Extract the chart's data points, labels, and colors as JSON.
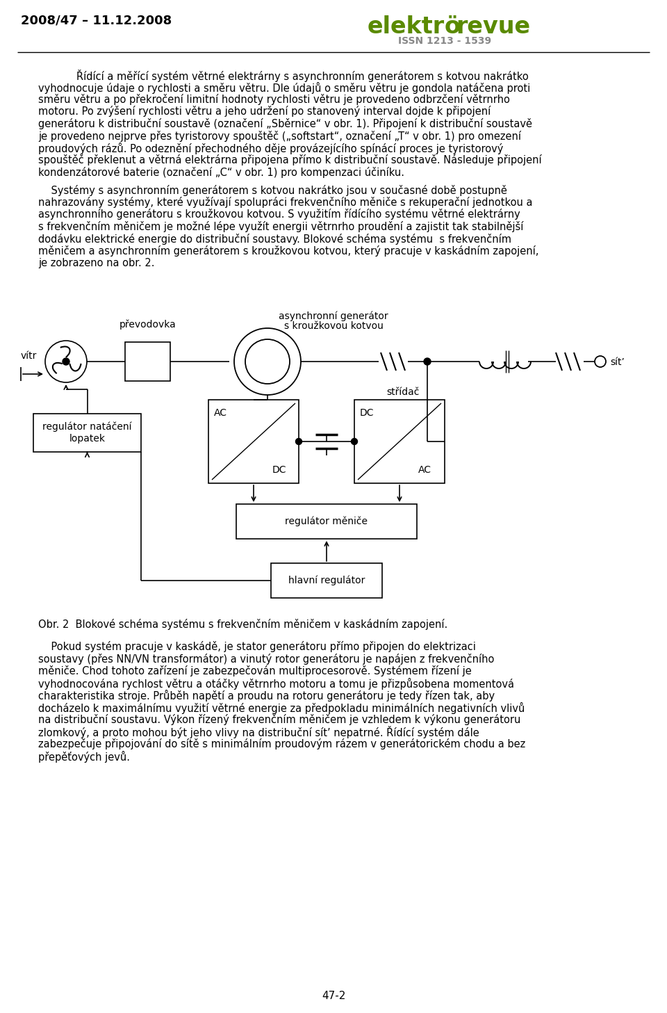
{
  "header_left": "2008/47 – 11.12.2008",
  "header_issn": "ISSN 1213 - 1539",
  "header_color": "#5a8a00",
  "header_gray": "#888888",
  "caption": "Obr. 2  Blokové schéma systému s frekvenčním měničem v kaskádním zapojení.",
  "page_number": "47-2",
  "background": "#ffffff",
  "text_color": "#000000",
  "para1_lines": [
    "Řídící a měřící systém větrné elektrárny s asynchronním generátorem s kotvou nakrátko",
    "vyhodnocuje údaje o rychlosti a směru větru. Dle údajů o směru větru je gondola natáčena proti",
    "směru větru a po překročení limitní hodnoty rychlosti větru je provedeno odbrzčení větrnrho",
    "motoru. Po zvýšení rychlosti větru a jeho udržení po stanovený interval dojde k připojení",
    "generátoru k distribuční soustavě (označení „Sběrnice“ v obr. 1). Připojení k distribuční soustavě",
    "je provedeno nejprve přes tyristorovy spouštěč („softstart“, označení „T“ v obr. 1) pro omezení",
    "proudových rázů. Po odeznění přechodného děje provázejícího spínácí proces je tyristorový",
    "spouštěč překlenut a větrná elektrárna připojena přímo k distribuční soustavě. Následuje připojení",
    "kondenzátorové baterie (označení „C“ v obr. 1) pro kompenzaci účiníku."
  ],
  "para2_lines": [
    "    Systémy s asynchronním generátorem s kotvou nakrátko jsou v současné době postupně",
    "nahrazovány systémy, které využívají spolupráci frekvenčního měniče s rekuperační jednotkou a",
    "asynchronního generátoru s kroužkovou kotvou. S využitím řídícího systému větrné elektrárny",
    "s frekvenčním měničem je možné lépe využít energii větrnrho proudění a zajistit tak stabilnější",
    "dodávku elektrické energie do distribuční soustavy. Blokové schéma systému  s frekvenčním",
    "měničem a asynchronním generátorem s kroužkovou kotvou, který pracuje v kaskádním zapojení,",
    "je zobrazeno na obr. 2."
  ],
  "para3_lines": [
    "    Pokud systém pracuje v kaskádě, je stator generátoru přímo připojen do elektrizaci",
    "soustavy (přes NN/VN transformátor) a vinutý rotor generátoru je napájen z frekvenčního",
    "měniče. Chod tohoto zařízení je zabezpečován multiprocesorově. Systémem řízení je",
    "vyhodnocována rychlost větru a otáčky větrnrho motoru a tomu je přizpůsobena momentová",
    "charakteristika stroje. Průběh napětí a proudu na rotoru generátoru je tedy řízen tak, aby",
    "docházelo k maximálnímu využití větrné energie za předpokladu minimálních negativních vlivů",
    "na distribuční soustavu. Výkon řízený frekvenčním měničem je vzhledem k výkonu generátoru",
    "zlomkový, a proto mohou být jeho vlivy na distribuční sítʼ nepatrné. Řídící systém dále",
    "zabezpečuje připojování do sítě s minimálním proudovým rázem v generátorickém chodu a bez",
    "přepěťových jevů."
  ]
}
